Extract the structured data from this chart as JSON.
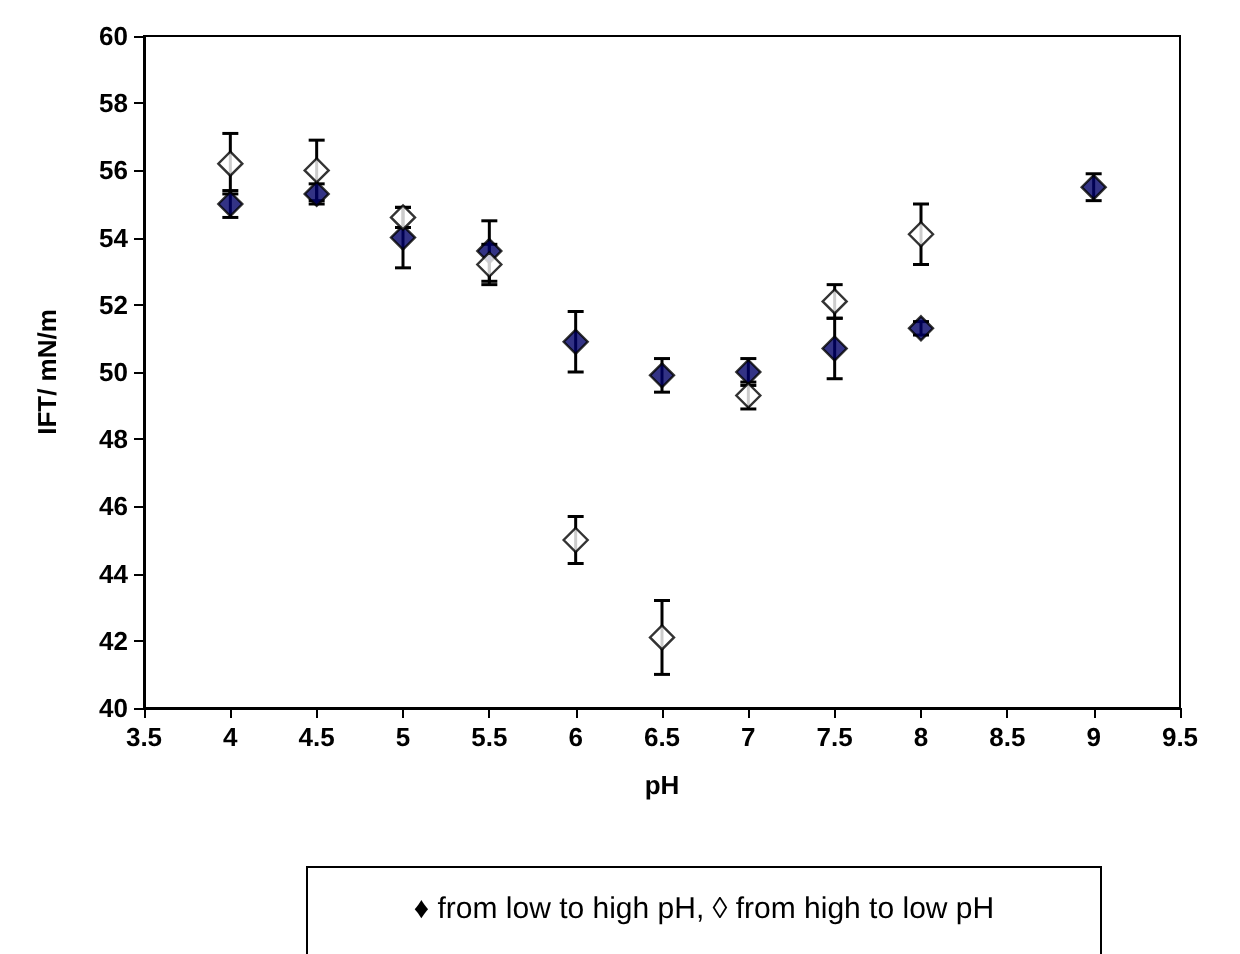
{
  "chart_data": {
    "type": "scatter",
    "xlabel": "pH",
    "ylabel": "IFT/ mN/m",
    "x": [
      4,
      4.5,
      5,
      5.5,
      6,
      6.5,
      7,
      7.5,
      8,
      9
    ],
    "series": [
      {
        "color": "#000066",
        "marker": "diamond",
        "values": [
          55.0,
          55.3,
          54.0,
          53.6,
          50.9,
          49.9,
          50.0,
          50.7,
          51.3,
          55.5
        ],
        "errors": [
          0.4,
          0.3,
          0.9,
          0.9,
          0.9,
          0.5,
          0.4,
          0.9,
          0.2,
          0.4
        ]
      },
      {
        "color": "#ffffff",
        "marker": "diamond",
        "x": [
          4,
          4.5,
          5,
          5.5,
          6,
          6.5,
          7,
          7.5,
          8
        ],
        "values": [
          56.2,
          56.0,
          54.6,
          53.2,
          45.0,
          42.1,
          49.3,
          52.1,
          54.1
        ],
        "errors": [
          0.9,
          0.9,
          0.3,
          0.6,
          0.7,
          1.1,
          0.4,
          0.5,
          0.9
        ]
      }
    ],
    "xlim": [
      3.5,
      9.5
    ],
    "xticks": [
      3.5,
      4,
      4.5,
      5,
      5.5,
      6,
      6.5,
      7,
      7.5,
      8,
      8.5,
      9,
      9.5
    ],
    "ylim": [
      40,
      60
    ],
    "yticks": [
      40,
      42,
      44,
      46,
      48,
      50,
      52,
      54,
      56,
      58,
      60
    ],
    "grid": false,
    "annotations": [
      "♦ from low to high pH, ◊ from high to low pH"
    ]
  }
}
